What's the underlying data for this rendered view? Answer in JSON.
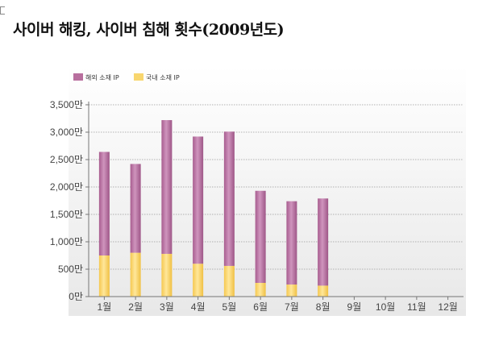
{
  "title": "사이버 해킹, 사이버 침해 횟수(2009년도)",
  "chart_data": {
    "type": "bar",
    "stacked": true,
    "title": "사이버 해킹, 사이버 침해 횟수(2009년도)",
    "categories": [
      "1월",
      "2월",
      "3월",
      "4월",
      "5월",
      "6월",
      "7월",
      "8월",
      "9월",
      "10월",
      "11월",
      "12월"
    ],
    "series": [
      {
        "name": "국내 소재 IP",
        "color": "#f8d66e",
        "values": [
          750,
          800,
          780,
          600,
          560,
          250,
          220,
          200,
          null,
          null,
          null,
          null
        ]
      },
      {
        "name": "해외 소재 IP",
        "color": "#b86f9e",
        "values": [
          1890,
          1620,
          2440,
          2320,
          2450,
          1680,
          1520,
          1590,
          null,
          null,
          null,
          null
        ]
      }
    ],
    "yticks": [
      "0만",
      "500만",
      "1,000만",
      "1,500만",
      "2,000만",
      "2,500만",
      "3,000만",
      "3,500만"
    ],
    "ytick_values": [
      0,
      500,
      1000,
      1500,
      2000,
      2500,
      3000,
      3500
    ],
    "ylim": [
      0,
      3500
    ],
    "xlabel": "",
    "ylabel": "",
    "legend": [
      "해외 소재 IP",
      "국내 소재 IP"
    ],
    "legend_position": "top-left",
    "grid": true
  }
}
